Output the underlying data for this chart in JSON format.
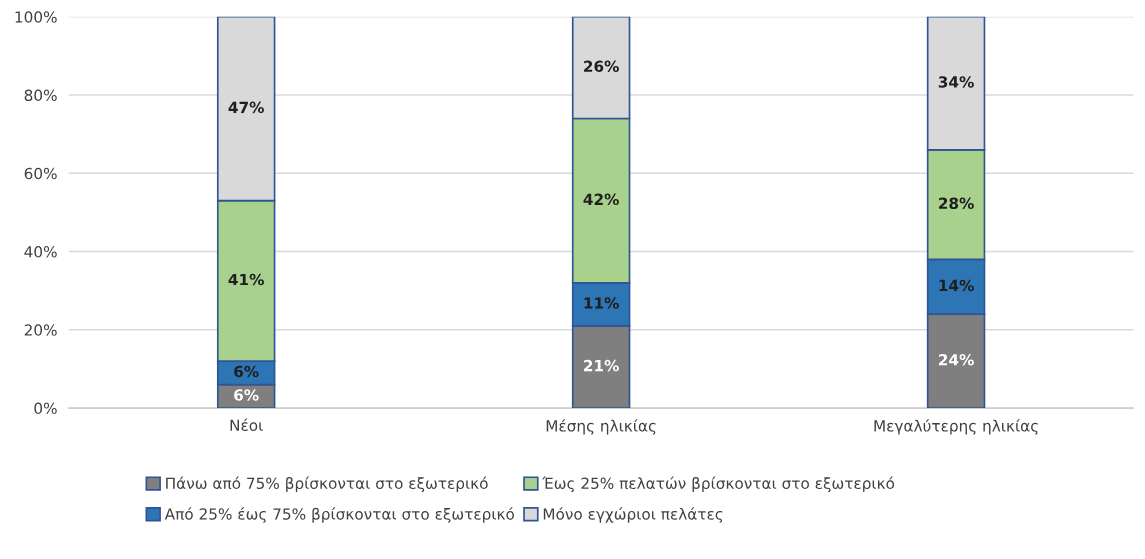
{
  "chart_data": {
    "type": "bar",
    "stacked": true,
    "categories": [
      "Νέοι",
      "Μέσης ηλικίας",
      "Μεγαλύτερης ηλικίας"
    ],
    "series": [
      {
        "name": "Πάνω από 75% βρίσκονται στο εξωτερικό",
        "color": "#7f7f7f",
        "values": [
          6,
          21,
          24
        ]
      },
      {
        "name": "Από 25% έως 75% βρίσκονται στο εξωτερικό",
        "color": "#2e75b6",
        "values": [
          6,
          11,
          14
        ]
      },
      {
        "name": "Έως 25% πελατών βρίσκονται στο εξωτερικό",
        "color": "#a9d18e",
        "values": [
          41,
          42,
          28
        ]
      },
      {
        "name": "Μόνο εγχώριοι πελάτες",
        "color": "#d9d9d9",
        "values": [
          47,
          26,
          34
        ]
      }
    ],
    "value_labels": [
      [
        "6%",
        "21%",
        "24%"
      ],
      [
        "6%",
        "11%",
        "14%"
      ],
      [
        "41%",
        "42%",
        "28%"
      ],
      [
        "47%",
        "26%",
        "34%"
      ]
    ],
    "ylim": [
      0,
      100
    ],
    "yticks": [
      {
        "value": 0,
        "label": "0%"
      },
      {
        "value": 20,
        "label": "20%"
      },
      {
        "value": 40,
        "label": "40%"
      },
      {
        "value": 60,
        "label": "60%"
      },
      {
        "value": 80,
        "label": "80%"
      },
      {
        "value": 100,
        "label": "100%"
      }
    ],
    "grid": "y",
    "legend": "bottom"
  }
}
